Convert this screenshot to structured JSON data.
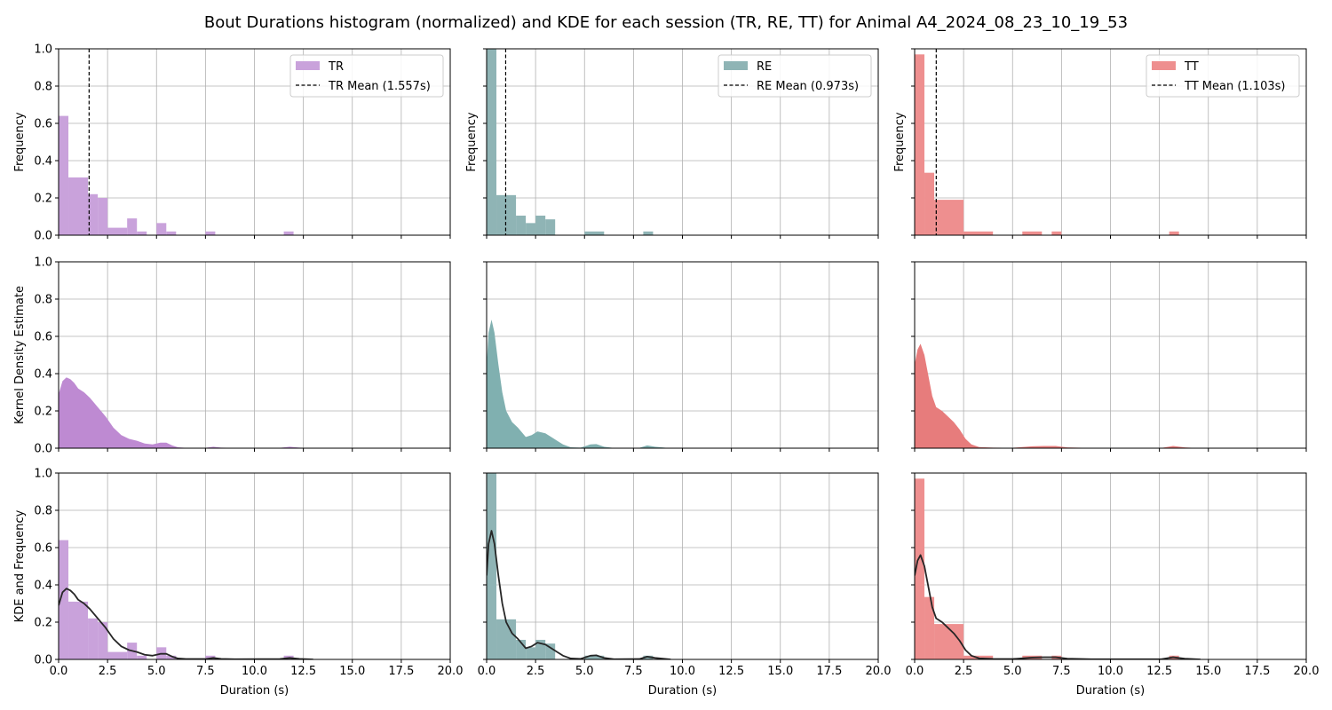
{
  "figure": {
    "title": "Bout Durations histogram (normalized) and KDE for each session (TR, RE, TT) for Animal A4_2024_08_23_10_19_53"
  },
  "chart_data": {
    "type": "histogram-kde-grid",
    "x_axis": {
      "label": "Duration (s)",
      "lim": [
        0,
        20
      ],
      "ticks": [
        0.0,
        2.5,
        5.0,
        7.5,
        10.0,
        12.5,
        15.0,
        17.5,
        20.0
      ],
      "tick_labels": [
        "0.0",
        "2.5",
        "5.0",
        "7.5",
        "10.0",
        "12.5",
        "15.0",
        "17.5",
        "20.0"
      ]
    },
    "y_axis": {
      "lim": [
        0,
        1
      ],
      "ticks": [
        0.0,
        0.2,
        0.4,
        0.6,
        0.8,
        1.0
      ],
      "tick_labels": [
        "0.0",
        "0.2",
        "0.4",
        "0.6",
        "0.8",
        "1.0"
      ]
    },
    "row_ylabels": [
      "Frequency",
      "Kernel Density Estimate",
      "KDE and Frequency"
    ],
    "grid": true,
    "legend_placement": "upper right",
    "sessions": [
      {
        "name": "TR",
        "hist_color": "#c9a2db",
        "kde_color": "#be8ad2",
        "mean": 1.557,
        "legend_hist": "TR",
        "legend_mean": "TR Mean (1.557s)",
        "bins": [
          [
            0.0,
            0.5,
            0.64
          ],
          [
            0.5,
            1.5,
            0.31
          ],
          [
            1.5,
            2.0,
            0.22
          ],
          [
            2.0,
            2.5,
            0.2
          ],
          [
            2.5,
            3.5,
            0.04
          ],
          [
            3.5,
            4.0,
            0.09
          ],
          [
            4.0,
            4.5,
            0.02
          ],
          [
            5.0,
            5.5,
            0.065
          ],
          [
            5.5,
            6.0,
            0.02
          ],
          [
            7.5,
            8.0,
            0.02
          ],
          [
            11.5,
            12.0,
            0.02
          ]
        ],
        "kde": [
          [
            0,
            0.29
          ],
          [
            0.2,
            0.36
          ],
          [
            0.4,
            0.38
          ],
          [
            0.6,
            0.37
          ],
          [
            0.8,
            0.35
          ],
          [
            1.0,
            0.32
          ],
          [
            1.3,
            0.3
          ],
          [
            1.6,
            0.27
          ],
          [
            2.0,
            0.22
          ],
          [
            2.4,
            0.17
          ],
          [
            2.8,
            0.11
          ],
          [
            3.2,
            0.07
          ],
          [
            3.6,
            0.05
          ],
          [
            4.0,
            0.04
          ],
          [
            4.4,
            0.025
          ],
          [
            4.8,
            0.02
          ],
          [
            5.2,
            0.03
          ],
          [
            5.5,
            0.03
          ],
          [
            5.8,
            0.015
          ],
          [
            6.1,
            0.005
          ],
          [
            6.5,
            0.002
          ],
          [
            7.5,
            0.002
          ],
          [
            7.9,
            0.008
          ],
          [
            8.3,
            0.003
          ],
          [
            9.0,
            0.001
          ],
          [
            11.3,
            0.002
          ],
          [
            11.8,
            0.008
          ],
          [
            12.3,
            0.003
          ],
          [
            13.0,
            0.0
          ]
        ]
      },
      {
        "name": "RE",
        "hist_color": "#8fb4b5",
        "kde_color": "#80b0b0",
        "mean": 0.973,
        "legend_hist": "RE",
        "legend_mean": "RE Mean (0.973s)",
        "bins": [
          [
            0.0,
            0.5,
            1.0
          ],
          [
            0.5,
            1.5,
            0.215
          ],
          [
            1.5,
            2.0,
            0.105
          ],
          [
            2.0,
            2.5,
            0.065
          ],
          [
            2.5,
            3.0,
            0.105
          ],
          [
            3.0,
            3.5,
            0.085
          ],
          [
            5.0,
            6.0,
            0.02
          ],
          [
            8.0,
            8.5,
            0.02
          ]
        ],
        "kde": [
          [
            0,
            0.45
          ],
          [
            0.1,
            0.62
          ],
          [
            0.25,
            0.69
          ],
          [
            0.4,
            0.62
          ],
          [
            0.6,
            0.45
          ],
          [
            0.8,
            0.3
          ],
          [
            1.0,
            0.2
          ],
          [
            1.3,
            0.14
          ],
          [
            1.6,
            0.11
          ],
          [
            2.0,
            0.06
          ],
          [
            2.3,
            0.07
          ],
          [
            2.6,
            0.09
          ],
          [
            3.0,
            0.08
          ],
          [
            3.3,
            0.06
          ],
          [
            3.6,
            0.04
          ],
          [
            3.9,
            0.02
          ],
          [
            4.3,
            0.005
          ],
          [
            4.8,
            0.003
          ],
          [
            5.3,
            0.02
          ],
          [
            5.6,
            0.022
          ],
          [
            6.0,
            0.008
          ],
          [
            6.5,
            0.001
          ],
          [
            7.8,
            0.002
          ],
          [
            8.2,
            0.015
          ],
          [
            8.6,
            0.008
          ],
          [
            9.4,
            0.0
          ]
        ]
      },
      {
        "name": "TT",
        "hist_color": "#ee8f8f",
        "kde_color": "#e77c7c",
        "mean": 1.103,
        "legend_hist": "TT",
        "legend_mean": "TT Mean (1.103s)",
        "bins": [
          [
            0.0,
            0.5,
            0.97
          ],
          [
            0.5,
            1.0,
            0.335
          ],
          [
            1.0,
            2.5,
            0.19
          ],
          [
            2.5,
            4.0,
            0.02
          ],
          [
            5.5,
            6.5,
            0.02
          ],
          [
            7.0,
            7.5,
            0.02
          ],
          [
            13.0,
            13.5,
            0.02
          ]
        ],
        "kde": [
          [
            0,
            0.45
          ],
          [
            0.15,
            0.53
          ],
          [
            0.3,
            0.56
          ],
          [
            0.5,
            0.5
          ],
          [
            0.7,
            0.39
          ],
          [
            0.9,
            0.28
          ],
          [
            1.1,
            0.22
          ],
          [
            1.4,
            0.2
          ],
          [
            1.7,
            0.17
          ],
          [
            2.0,
            0.14
          ],
          [
            2.3,
            0.1
          ],
          [
            2.6,
            0.05
          ],
          [
            2.9,
            0.02
          ],
          [
            3.3,
            0.006
          ],
          [
            4.0,
            0.003
          ],
          [
            5.0,
            0.002
          ],
          [
            6.0,
            0.01
          ],
          [
            6.6,
            0.012
          ],
          [
            7.2,
            0.012
          ],
          [
            7.8,
            0.004
          ],
          [
            9.0,
            0.001
          ],
          [
            12.6,
            0.001
          ],
          [
            13.2,
            0.012
          ],
          [
            13.8,
            0.004
          ],
          [
            14.6,
            0.0
          ]
        ]
      }
    ]
  }
}
